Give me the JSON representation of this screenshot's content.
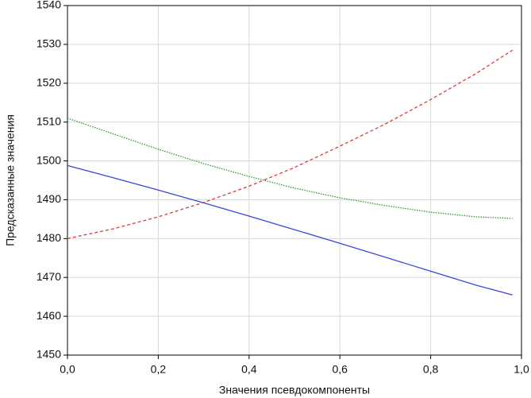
{
  "chart_data": {
    "type": "line",
    "xlabel": "Значения псевдокомпоненты",
    "ylabel": "Предсказанные значения",
    "x": [
      0,
      0.1,
      0.2,
      0.3,
      0.4,
      0.5,
      0.6,
      0.7,
      0.8,
      0.9,
      0.98
    ],
    "series": [
      {
        "color": "#3a46d8",
        "style": "solid",
        "values": [
          1498.8,
          1495.7,
          1492.5,
          1489.2,
          1485.8,
          1482.3,
          1478.8,
          1475.2,
          1471.6,
          1468,
          1465.5
        ]
      },
      {
        "color": "#2f9a2f",
        "style": "dotted",
        "values": [
          1511,
          1507,
          1503,
          1499.3,
          1496,
          1493,
          1490.5,
          1488.5,
          1486.8,
          1485.6,
          1485.2
        ]
      },
      {
        "color": "#e03a3a",
        "style": "dashed",
        "values": [
          1480,
          1482.5,
          1485.6,
          1489.3,
          1493.5,
          1498.3,
          1503.8,
          1509.5,
          1515.8,
          1522.5,
          1528.5
        ]
      }
    ],
    "xlim": [
      0,
      1
    ],
    "xticks": [
      {
        "value": 0,
        "label": "0,0"
      },
      {
        "value": 0.2,
        "label": "0,2"
      },
      {
        "value": 0.4,
        "label": "0,4"
      },
      {
        "value": 0.6,
        "label": "0,6"
      },
      {
        "value": 0.8,
        "label": "0,8"
      },
      {
        "value": 1,
        "label": "1,0"
      }
    ],
    "ylim": [
      1450,
      1540
    ],
    "yticks": [
      1450,
      1460,
      1470,
      1480,
      1490,
      1500,
      1510,
      1520,
      1530,
      1540
    ],
    "grid": true
  }
}
